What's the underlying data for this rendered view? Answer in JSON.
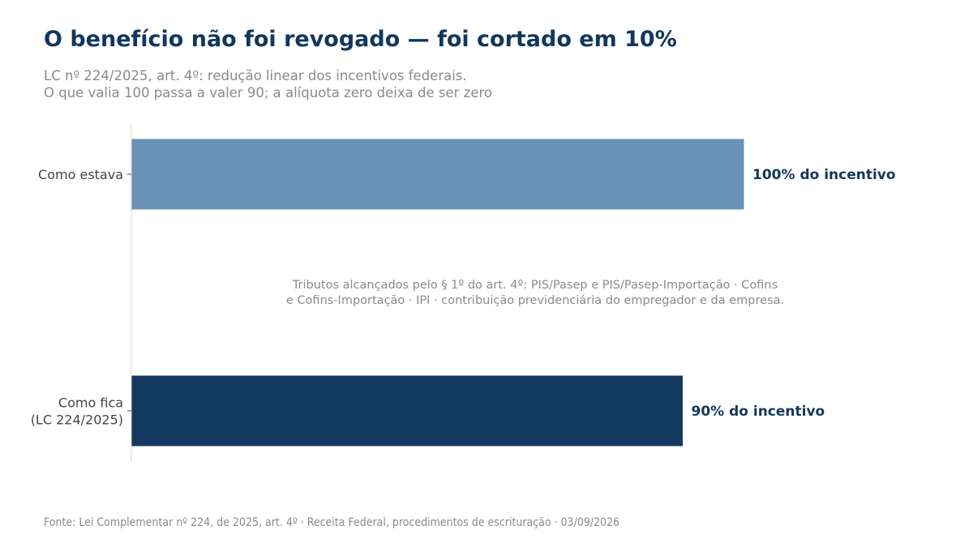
{
  "header": {
    "title": "O benefício não foi revogado — foi cortado em 10%",
    "subtitle_line1": "LC nº 224/2025, art. 4º: redução linear dos incentivos federais.",
    "subtitle_line2": "O que valia 100 passa a valer 90; a alíquota zero deixa de ser zero"
  },
  "footer": {
    "source": "Fonte: Lei Complementar nº 224, de 2025, art. 4º · Receita Federal, procedimentos de escrituração · 03/09/2026"
  },
  "chart_data": {
    "type": "bar",
    "orientation": "horizontal",
    "categories": [
      [
        "Como estava"
      ],
      [
        "Como fica",
        "(LC 224/2025)"
      ]
    ],
    "values": [
      100,
      90
    ],
    "data_labels": [
      "100% do incentivo",
      "90% do incentivo"
    ],
    "colors": [
      "#6b93b7",
      "#14395e"
    ],
    "label_color": "#12375c",
    "xlim": [
      0,
      100
    ],
    "grid": false,
    "annotation": [
      "Tributos alcançados pelo § 1º do art. 4º:  PIS/Pasep e PIS/Pasep-Importação · Cofins",
      "e Cofins-Importação · IPI · contribuição previdenciária do empregador e da empresa."
    ]
  }
}
